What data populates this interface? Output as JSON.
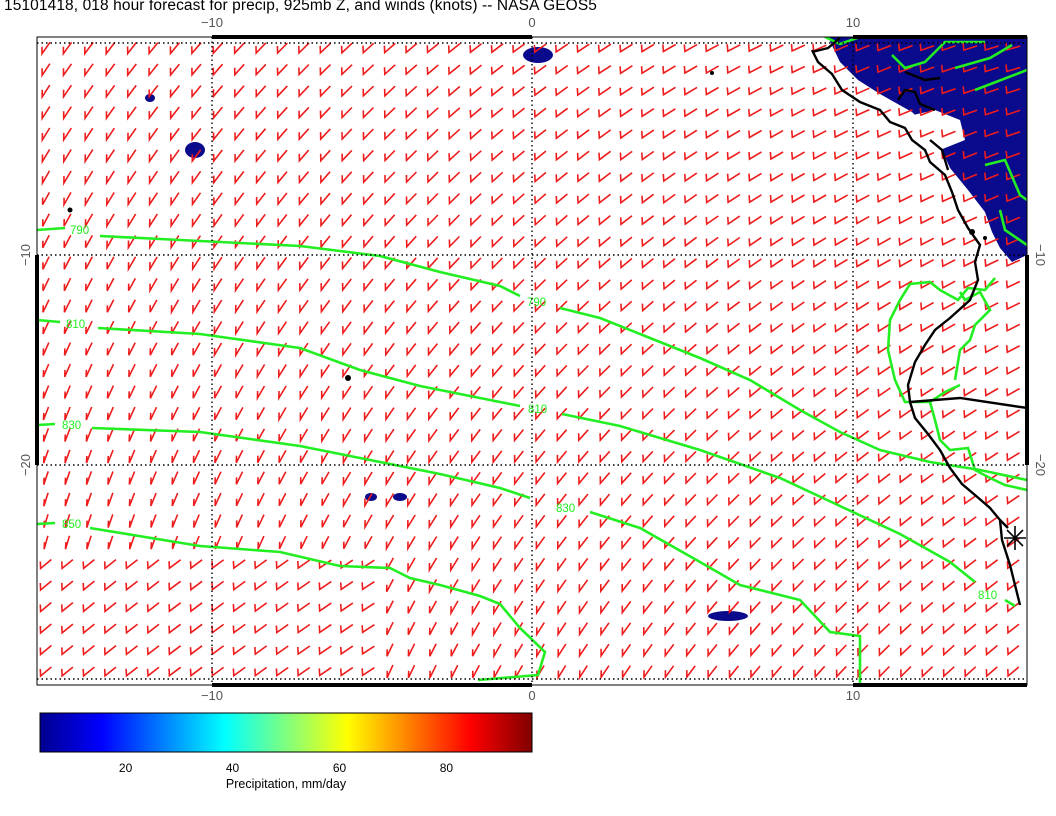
{
  "title": "15101418, 018 hour forecast for precip, 925mb Z, and winds (knots) -- NASA GEOS5",
  "map": {
    "x_ticks": [
      {
        "value": -10,
        "label": "−10"
      },
      {
        "value": 0,
        "label": "0"
      },
      {
        "value": 10,
        "label": "10"
      }
    ],
    "y_ticks": [
      {
        "value": -10,
        "label": "−10"
      },
      {
        "value": -20,
        "label": "−20"
      }
    ],
    "contour_labels": [
      "790",
      "810",
      "830",
      "850",
      "790",
      "810",
      "830",
      "810"
    ],
    "colors": {
      "contour": "#22ee22",
      "wind_barbs": "#ee1c1c",
      "coastline": "#000000",
      "precip_low": "#0a0a8c",
      "grid": "#000000"
    }
  },
  "colorbar": {
    "label": "Precipitation, mm/day",
    "ticks": [
      "20",
      "40",
      "60",
      "80"
    ],
    "range": [
      4,
      96
    ],
    "tick_values": [
      20,
      40,
      60,
      80
    ],
    "colors": [
      "#00008f",
      "#0000ff",
      "#00a0ff",
      "#00ffff",
      "#7fff7f",
      "#ffff00",
      "#ff8000",
      "#ff0000",
      "#800000"
    ]
  }
}
